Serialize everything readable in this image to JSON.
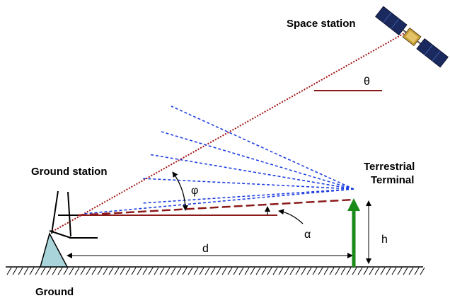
{
  "labels": {
    "space_station": "Space station",
    "ground_station": "Ground station",
    "terrestrial_line1": "Terrestrial",
    "terrestrial_line2": "Terminal",
    "ground": "Ground",
    "theta": "θ",
    "phi": "φ",
    "alpha": "α",
    "d": "d",
    "h": "h"
  },
  "colors": {
    "dark_red": "#8b1a1a",
    "dotted_red": "#a01010",
    "blue_dashed": "#1f3fe0",
    "green_arrow": "#1a8a1a",
    "antenna_base": "#a8d4da"
  },
  "icons": [
    "satellite-icon",
    "ground-antenna-icon",
    "ground-hatch"
  ]
}
